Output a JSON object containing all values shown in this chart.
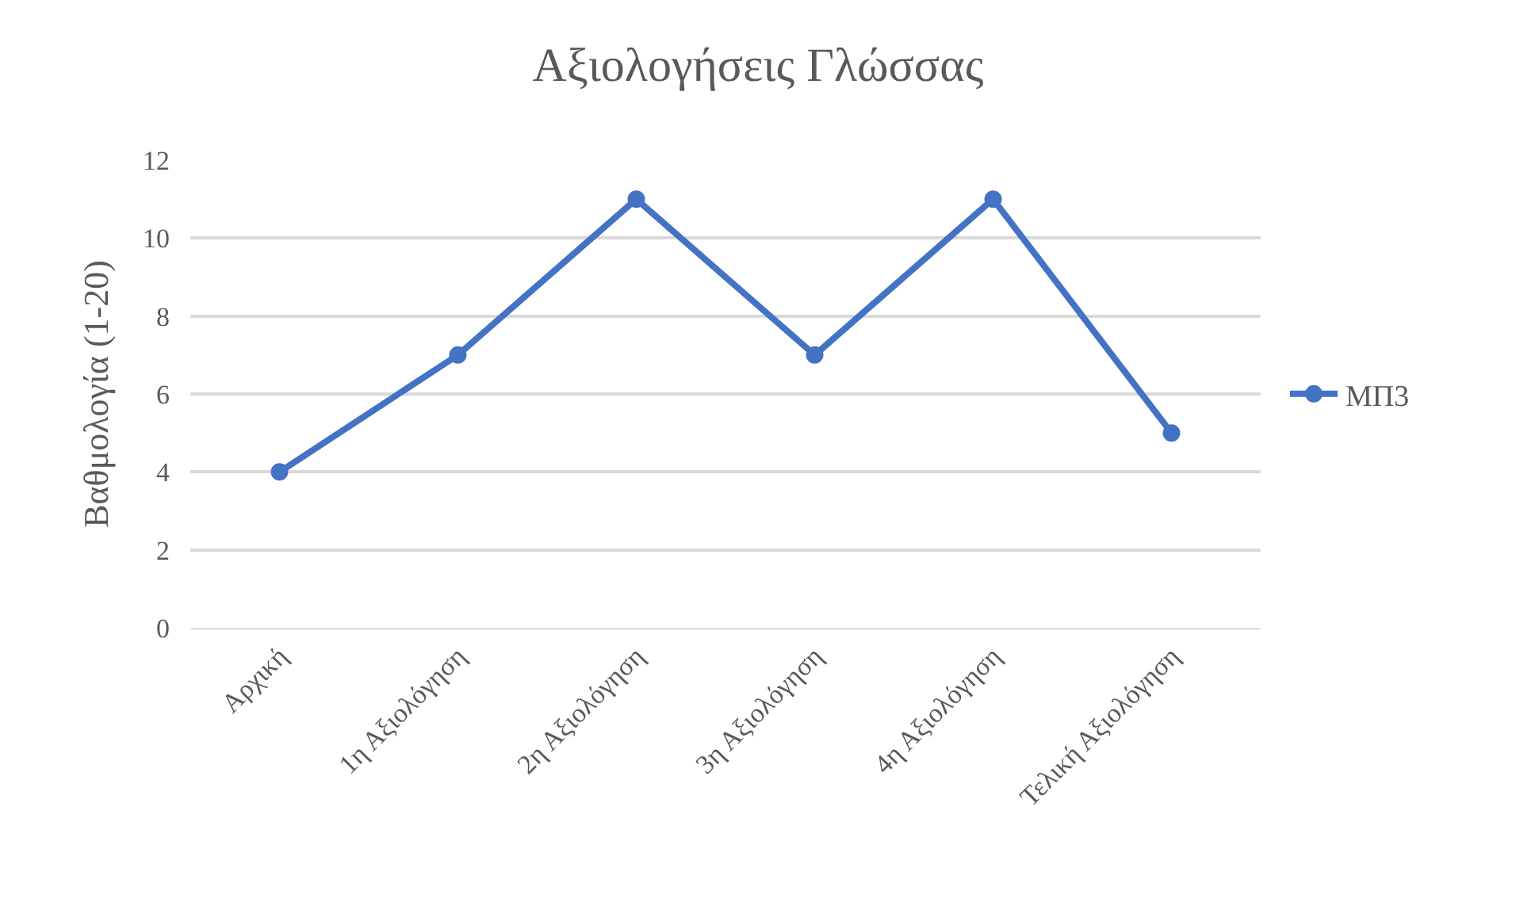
{
  "chart_data": {
    "type": "line",
    "title": "Αξιολογήσεις Γλώσσας",
    "ylabel": "Βαθμολογία (1-20)",
    "categories": [
      "Αρχική",
      "1η Αξιολόγηση",
      "2η Αξιολόγηση",
      "3η Αξιολόγηση",
      "4η Αξιολόγηση",
      "Τελική Αξιολόγηση"
    ],
    "series": [
      {
        "name": "ΜΠ3",
        "color": "#4472c4",
        "values": [
          4,
          7,
          11,
          7,
          11,
          5
        ]
      }
    ],
    "ylim": [
      0,
      12
    ],
    "yticks": [
      0,
      2,
      4,
      6,
      8,
      10,
      12
    ],
    "grid": "y",
    "legend": "right",
    "marker": "circle",
    "line_style": "solid"
  }
}
